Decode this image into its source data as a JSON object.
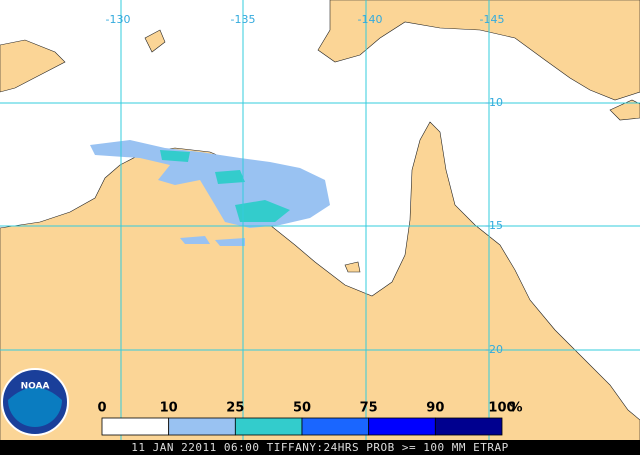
{
  "map": {
    "lon_labels": [
      "-130",
      "-135",
      "-140",
      "-145"
    ],
    "lat_labels": [
      "-10",
      "-15",
      "-20"
    ],
    "logo": "NOAA",
    "legend": {
      "labels": [
        "0",
        "10",
        "25",
        "50",
        "75",
        "90",
        "100"
      ],
      "unit": "%",
      "colors": [
        "#ffffff",
        "#99c2f2",
        "#33cccc",
        "#1a66ff",
        "#0000ff",
        "#00008f"
      ]
    },
    "caption": "11 JAN 22011 06:00 TIFFANY:24HRS PROB >= 100 MM ETRAP"
  }
}
